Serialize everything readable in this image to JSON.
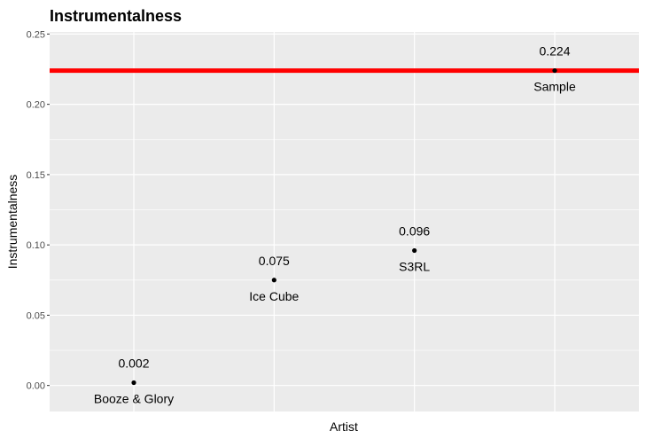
{
  "chart_data": {
    "type": "scatter",
    "title": "Instrumentalness",
    "xlabel": "Artist",
    "ylabel": "Instrumentalness",
    "ylim": [
      -0.0185,
      0.2515
    ],
    "y_ticks": [
      0.0,
      0.05,
      0.1,
      0.15,
      0.2,
      0.25
    ],
    "y_tick_labels": [
      "0.00",
      "0.05",
      "0.10",
      "0.15",
      "0.20",
      "0.25"
    ],
    "grid": true,
    "points": [
      {
        "artist": "Booze & Glory",
        "x": 1,
        "y": 0.002,
        "label": "0.002"
      },
      {
        "artist": "Ice Cube",
        "x": 2,
        "y": 0.075,
        "label": "0.075"
      },
      {
        "artist": "S3RL",
        "x": 3,
        "y": 0.096,
        "label": "0.096"
      },
      {
        "artist": "Sample",
        "x": 4,
        "y": 0.224,
        "label": "0.224"
      }
    ],
    "xlim": [
      0.4,
      4.6
    ],
    "reference_line": {
      "y": 0.224,
      "color": "#FF0000"
    }
  },
  "colors": {
    "panel_background": "#EBEBEB",
    "grid_major": "#FFFFFF",
    "point": "#000000",
    "reference_line": "#FF0000"
  }
}
